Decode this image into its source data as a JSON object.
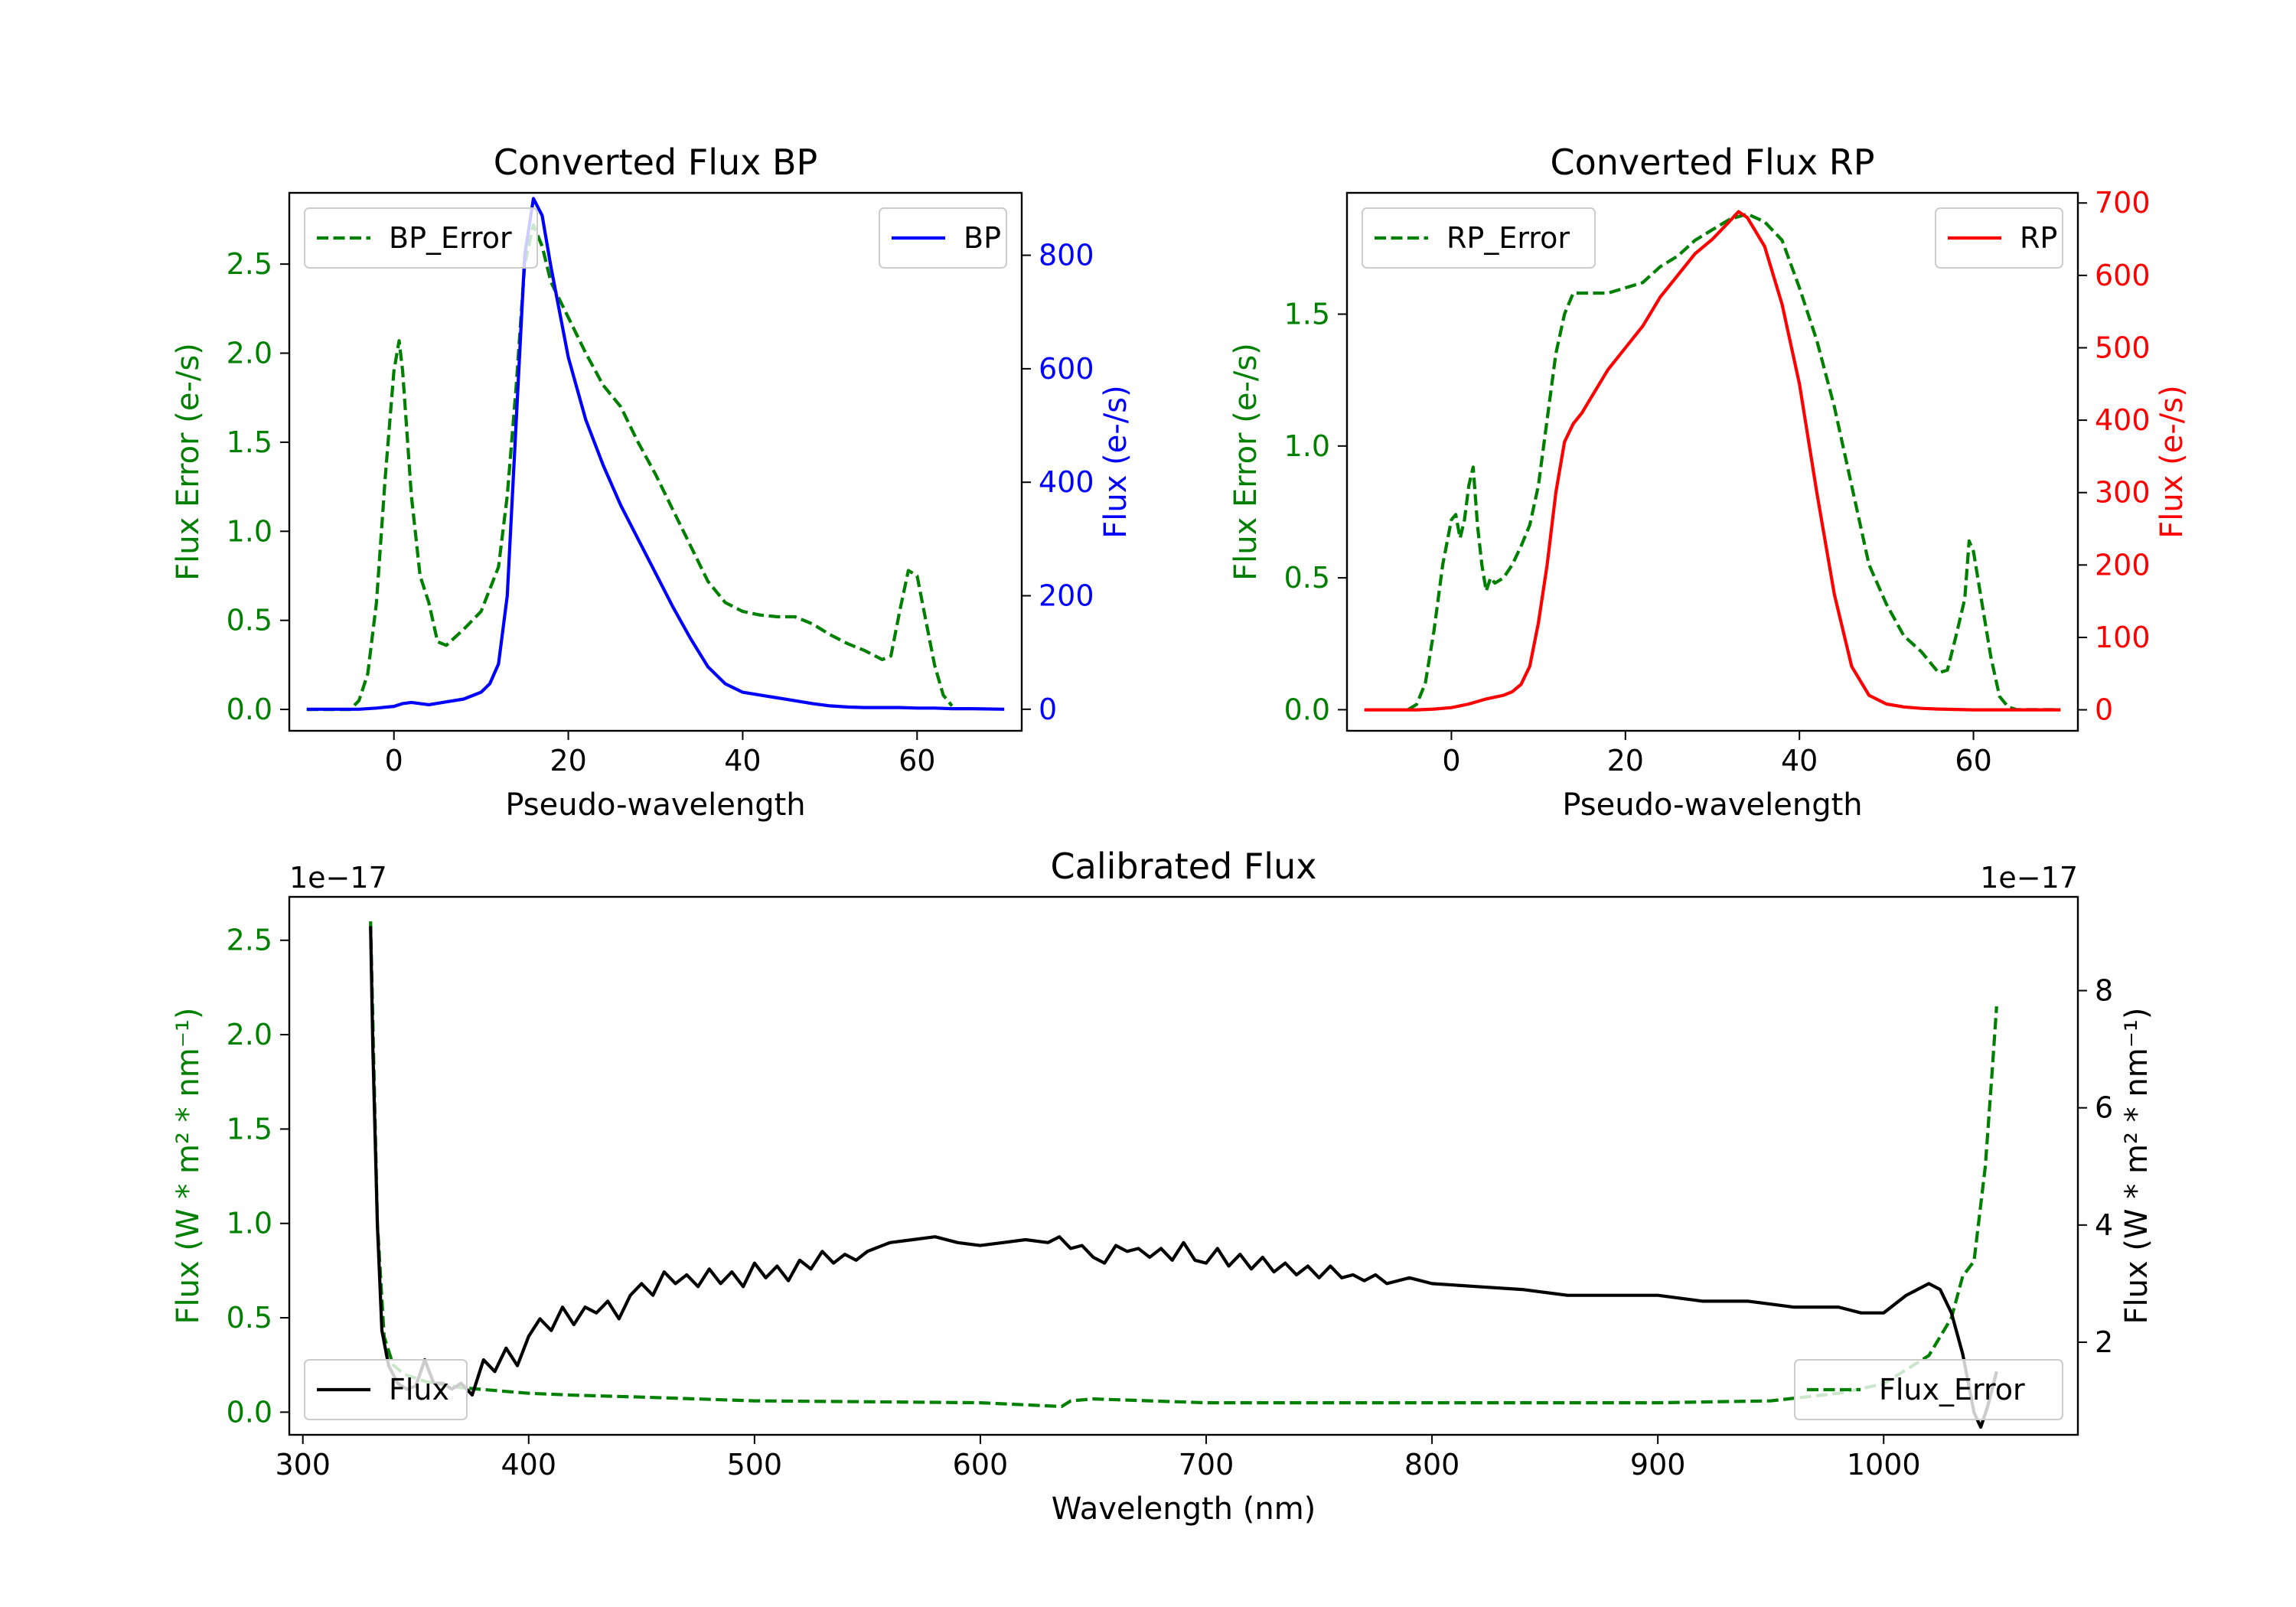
{
  "chart_data": [
    {
      "type": "line",
      "title": "Converted Flux BP",
      "xlabel": "Pseudo-wavelength",
      "ylabel_left": "Flux Error (e-/s)",
      "ylabel_right": "Flux (e-/s)",
      "xlim": [
        -12,
        72
      ],
      "ylim_left": [
        -0.12,
        2.9
      ],
      "ylim_right": [
        -38,
        910
      ],
      "xticks": [
        0,
        20,
        40,
        60
      ],
      "xtick_labels": [
        "0",
        "20",
        "40",
        "60"
      ],
      "yticks_left": [
        0,
        0.5,
        1.0,
        1.5,
        2.0,
        2.5
      ],
      "yticks_left_labels": [
        "0.0",
        "0.5",
        "1.0",
        "1.5",
        "2.0",
        "2.5"
      ],
      "yticks_right": [
        0,
        200,
        400,
        600,
        800
      ],
      "yticks_right_labels": [
        "0",
        "200",
        "400",
        "600",
        "800"
      ],
      "series": [
        {
          "name": "BP_Error",
          "axis": "left",
          "color": "#008000",
          "dash": true,
          "legend": "BP_Error",
          "legend_position": "upper left",
          "x": [
            -10,
            -5,
            -4,
            -3,
            -2,
            -1,
            0,
            0.6,
            1,
            2,
            3,
            4,
            5,
            6,
            8,
            10,
            12,
            13,
            14,
            15,
            16,
            17,
            18,
            20,
            22,
            24,
            26,
            28,
            30,
            32,
            34,
            36,
            38,
            40,
            42,
            44,
            46,
            48,
            50,
            52,
            54,
            56,
            57,
            58,
            59,
            60,
            61,
            62,
            63,
            64
          ],
          "y": [
            0,
            0,
            0.05,
            0.2,
            0.6,
            1.3,
            1.9,
            2.07,
            1.9,
            1.2,
            0.75,
            0.6,
            0.38,
            0.36,
            0.45,
            0.55,
            0.8,
            1.2,
            1.8,
            2.5,
            2.72,
            2.6,
            2.4,
            2.2,
            2.0,
            1.82,
            1.7,
            1.5,
            1.32,
            1.12,
            0.92,
            0.72,
            0.6,
            0.55,
            0.53,
            0.52,
            0.52,
            0.48,
            0.42,
            0.37,
            0.33,
            0.28,
            0.3,
            0.55,
            0.78,
            0.75,
            0.5,
            0.25,
            0.08,
            0.02
          ]
        },
        {
          "name": "BP",
          "axis": "right",
          "color": "#0000ff",
          "dash": false,
          "legend": "BP",
          "legend_position": "upper right",
          "x": [
            -10,
            -6,
            -4,
            -2,
            0,
            1,
            2,
            3,
            4,
            6,
            8,
            10,
            11,
            12,
            13,
            14,
            15,
            16,
            17,
            18,
            20,
            22,
            24,
            26,
            28,
            30,
            32,
            34,
            36,
            38,
            40,
            42,
            44,
            46,
            48,
            50,
            52,
            54,
            56,
            58,
            60,
            62,
            64,
            66,
            70
          ],
          "y": [
            0,
            0,
            0,
            2,
            5,
            10,
            12,
            10,
            8,
            13,
            18,
            30,
            45,
            80,
            200,
            500,
            800,
            900,
            870,
            780,
            620,
            510,
            430,
            360,
            300,
            240,
            180,
            125,
            75,
            45,
            30,
            25,
            20,
            15,
            10,
            6,
            4,
            3,
            3,
            3,
            2,
            2,
            1,
            1,
            0
          ]
        }
      ]
    },
    {
      "type": "line",
      "title": "Converted Flux RP",
      "xlabel": "Pseudo-wavelength",
      "ylabel_left": "Flux Error (e-/s)",
      "ylabel_right": "Flux (e-/s)",
      "xlim": [
        -12,
        72
      ],
      "ylim_left": [
        -0.08,
        1.96
      ],
      "ylim_right": [
        -29,
        714
      ],
      "xticks": [
        0,
        20,
        40,
        60
      ],
      "xtick_labels": [
        "0",
        "20",
        "40",
        "60"
      ],
      "yticks_left": [
        0,
        0.5,
        1.0,
        1.5
      ],
      "yticks_left_labels": [
        "0.0",
        "0.5",
        "1.0",
        "1.5"
      ],
      "yticks_right": [
        0,
        100,
        200,
        300,
        400,
        500,
        600,
        700
      ],
      "yticks_right_labels": [
        "0",
        "100",
        "200",
        "300",
        "400",
        "500",
        "600",
        "700"
      ],
      "series": [
        {
          "name": "RP_Error",
          "axis": "left",
          "color": "#008000",
          "dash": true,
          "legend": "RP_Error",
          "legend_position": "upper left",
          "x": [
            -5,
            -4,
            -3,
            -2,
            -1,
            0,
            0.5,
            1,
            1.5,
            2,
            2.5,
            3,
            3.5,
            4,
            4.5,
            5,
            6,
            7,
            8,
            9,
            10,
            11,
            12,
            13,
            14,
            16,
            18,
            20,
            22,
            24,
            26,
            28,
            30,
            32,
            34,
            36,
            38,
            40,
            42,
            44,
            46,
            48,
            50,
            52,
            54,
            55,
            56,
            57,
            58,
            59,
            59.5,
            60,
            61,
            62,
            63,
            64,
            65,
            70
          ],
          "y": [
            0,
            0.02,
            0.1,
            0.3,
            0.55,
            0.72,
            0.74,
            0.65,
            0.72,
            0.85,
            0.92,
            0.7,
            0.55,
            0.45,
            0.5,
            0.48,
            0.5,
            0.55,
            0.62,
            0.7,
            0.85,
            1.1,
            1.35,
            1.5,
            1.58,
            1.58,
            1.58,
            1.6,
            1.62,
            1.68,
            1.72,
            1.78,
            1.82,
            1.86,
            1.88,
            1.85,
            1.78,
            1.6,
            1.4,
            1.15,
            0.85,
            0.55,
            0.4,
            0.28,
            0.22,
            0.18,
            0.14,
            0.15,
            0.28,
            0.42,
            0.64,
            0.6,
            0.4,
            0.2,
            0.05,
            0.01,
            0,
            0
          ]
        },
        {
          "name": "RP",
          "axis": "right",
          "color": "#ff0000",
          "dash": false,
          "legend": "RP",
          "legend_position": "upper right",
          "x": [
            -10,
            -4,
            -2,
            0,
            2,
            4,
            6,
            7,
            8,
            9,
            10,
            11,
            12,
            13,
            14,
            15,
            16,
            18,
            20,
            22,
            24,
            26,
            28,
            30,
            32,
            33,
            34,
            36,
            38,
            40,
            42,
            44,
            46,
            48,
            50,
            52,
            54,
            56,
            60,
            64,
            70
          ],
          "y": [
            0,
            0,
            1,
            3,
            8,
            15,
            20,
            25,
            35,
            60,
            120,
            200,
            300,
            370,
            395,
            410,
            430,
            470,
            500,
            530,
            570,
            600,
            630,
            650,
            675,
            688,
            680,
            640,
            560,
            450,
            300,
            160,
            60,
            20,
            8,
            4,
            2,
            1,
            0,
            0,
            0
          ]
        }
      ]
    },
    {
      "type": "line",
      "title": "Calibrated Flux",
      "xlabel": "Wavelength (nm)",
      "ylabel_left": "Flux (W * m² * nm⁻¹)",
      "ylabel_right": "Flux (W * m² * nm⁻¹)",
      "offset_left": "1e−17",
      "offset_right": "1e−17",
      "xlim": [
        294,
        1086
      ],
      "ylim_left": [
        -0.12,
        2.73
      ],
      "ylim_right": [
        0.42,
        9.6
      ],
      "xticks": [
        300,
        400,
        500,
        600,
        700,
        800,
        900,
        1000
      ],
      "xtick_labels": [
        "300",
        "400",
        "500",
        "600",
        "700",
        "800",
        "900",
        "1000"
      ],
      "yticks_left": [
        0,
        0.5,
        1.0,
        1.5,
        2.0,
        2.5
      ],
      "yticks_left_labels": [
        "0.0",
        "0.5",
        "1.0",
        "1.5",
        "2.0",
        "2.5"
      ],
      "yticks_right": [
        2,
        4,
        6,
        8
      ],
      "yticks_right_labels": [
        "2",
        "4",
        "6",
        "8"
      ],
      "series": [
        {
          "name": "Flux_Error",
          "axis": "left",
          "color": "#008000",
          "dash": true,
          "legend": "Flux_Error",
          "legend_position": "lower right",
          "x": [
            330,
            333,
            336,
            340,
            345,
            355,
            370,
            390,
            400,
            420,
            450,
            500,
            550,
            600,
            636,
            640,
            650,
            700,
            800,
            900,
            950,
            980,
            1000,
            1020,
            1030,
            1035,
            1040,
            1045,
            1048,
            1050
          ],
          "y": [
            2.6,
            1.0,
            0.4,
            0.25,
            0.2,
            0.16,
            0.13,
            0.11,
            0.1,
            0.09,
            0.08,
            0.06,
            0.055,
            0.05,
            0.03,
            0.06,
            0.07,
            0.05,
            0.05,
            0.05,
            0.06,
            0.1,
            0.15,
            0.3,
            0.5,
            0.72,
            0.8,
            1.3,
            1.8,
            2.15
          ]
        },
        {
          "name": "Flux",
          "axis": "right",
          "color": "#000000",
          "dash": false,
          "legend": "Flux",
          "legend_position": "lower left",
          "x": [
            330,
            331,
            333,
            335,
            338,
            342,
            346,
            350,
            354,
            358,
            362,
            366,
            370,
            375,
            380,
            385,
            390,
            395,
            400,
            405,
            410,
            415,
            420,
            425,
            430,
            435,
            440,
            445,
            450,
            455,
            460,
            465,
            470,
            475,
            480,
            485,
            490,
            495,
            500,
            505,
            510,
            515,
            520,
            525,
            530,
            535,
            540,
            545,
            550,
            560,
            570,
            580,
            590,
            600,
            610,
            620,
            630,
            635,
            640,
            645,
            650,
            655,
            660,
            665,
            670,
            675,
            680,
            685,
            690,
            695,
            700,
            705,
            710,
            715,
            720,
            725,
            730,
            735,
            740,
            745,
            750,
            755,
            760,
            765,
            770,
            775,
            780,
            790,
            800,
            820,
            840,
            860,
            880,
            900,
            920,
            940,
            950,
            960,
            970,
            980,
            990,
            1000,
            1010,
            1020,
            1025,
            1030,
            1035,
            1040,
            1043,
            1046,
            1050
          ],
          "y": [
            9.1,
            7.0,
            4.0,
            2.2,
            1.6,
            1.3,
            1.2,
            1.25,
            1.7,
            1.3,
            1.3,
            1.2,
            1.3,
            1.1,
            1.7,
            1.5,
            1.9,
            1.6,
            2.1,
            2.4,
            2.2,
            2.6,
            2.3,
            2.6,
            2.5,
            2.7,
            2.4,
            2.8,
            3.0,
            2.8,
            3.2,
            3.0,
            3.15,
            2.95,
            3.25,
            3.0,
            3.2,
            2.95,
            3.35,
            3.1,
            3.3,
            3.05,
            3.4,
            3.25,
            3.55,
            3.35,
            3.5,
            3.4,
            3.55,
            3.7,
            3.75,
            3.8,
            3.7,
            3.65,
            3.7,
            3.75,
            3.7,
            3.8,
            3.6,
            3.65,
            3.45,
            3.35,
            3.65,
            3.55,
            3.6,
            3.45,
            3.6,
            3.4,
            3.7,
            3.4,
            3.35,
            3.6,
            3.3,
            3.5,
            3.25,
            3.45,
            3.2,
            3.35,
            3.15,
            3.3,
            3.1,
            3.3,
            3.1,
            3.15,
            3.05,
            3.15,
            3.0,
            3.1,
            3.0,
            2.95,
            2.9,
            2.8,
            2.8,
            2.8,
            2.7,
            2.7,
            2.65,
            2.6,
            2.6,
            2.6,
            2.5,
            2.5,
            2.8,
            3.0,
            2.9,
            2.5,
            1.8,
            0.8,
            0.55,
            0.9,
            1.5
          ]
        }
      ]
    }
  ]
}
